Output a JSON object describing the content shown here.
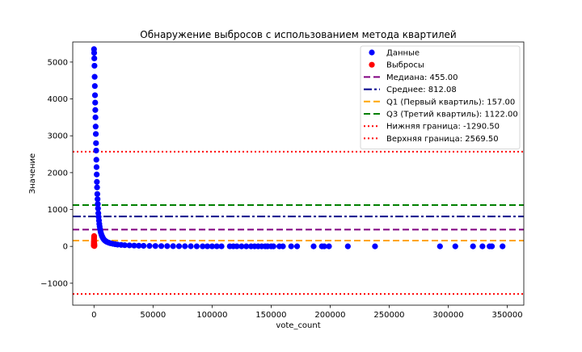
{
  "chart_data": {
    "type": "scatter",
    "title": "Обнаружение выбросов с использованием метода квартилей",
    "xlabel": "vote_count",
    "ylabel": "Значение",
    "xlim": [
      -18000,
      364000
    ],
    "ylim": [
      -1595,
      5545
    ],
    "xticks": [
      0,
      50000,
      100000,
      150000,
      200000,
      250000,
      300000,
      350000
    ],
    "yticks": [
      -1000,
      0,
      1000,
      2000,
      3000,
      4000,
      5000
    ],
    "grid": false,
    "legend_position": "top-right",
    "series": [
      {
        "name": "Данные",
        "marker": "circle",
        "color": "#0000ff",
        "x": [
          0,
          120,
          250,
          400,
          550,
          700,
          850,
          1000,
          1100,
          1250,
          1400,
          1550,
          1700,
          1850,
          2000,
          2150,
          2300,
          2450,
          2600,
          2800,
          3000,
          3200,
          3400,
          3650,
          3900,
          4200,
          4500,
          4800,
          5100,
          5500,
          5900,
          6400,
          6900,
          7500,
          8200,
          9000,
          10000,
          11000,
          12500,
          14000,
          16000,
          18000,
          20000,
          23000,
          26000,
          30000,
          34000,
          38000,
          42000,
          47000,
          52000,
          57000,
          62000,
          67000,
          72000,
          77000,
          82000,
          87000,
          92000,
          96000,
          100000,
          104000,
          108000,
          115000,
          118000,
          121000,
          125000,
          129000,
          133000,
          136000,
          139000,
          142000,
          145000,
          147000,
          150000,
          152000,
          157000,
          160000,
          167000,
          172000,
          186000,
          193000,
          195000,
          199000,
          215000,
          238000,
          293000,
          306000,
          321000,
          329000,
          335000,
          337000,
          346000
        ],
        "y": [
          5350,
          5250,
          5100,
          4900,
          4600,
          4350,
          4100,
          3900,
          3700,
          3500,
          3250,
          3050,
          2800,
          2600,
          2350,
          2150,
          1950,
          1750,
          1600,
          1420,
          1280,
          1150,
          1030,
          900,
          800,
          700,
          610,
          540,
          470,
          410,
          360,
          310,
          270,
          230,
          195,
          165,
          140,
          120,
          100,
          85,
          70,
          58,
          48,
          40,
          33,
          27,
          22,
          18,
          15,
          12,
          10,
          8,
          7,
          6,
          5,
          4,
          4,
          3,
          3,
          3,
          2,
          2,
          2,
          2,
          2,
          2,
          1,
          1,
          1,
          1,
          1,
          1,
          1,
          1,
          1,
          1,
          1,
          1,
          1,
          1,
          1,
          1,
          1,
          1,
          1,
          1,
          1,
          1,
          1,
          1,
          1,
          1,
          1
        ]
      },
      {
        "name": "Выбросы",
        "marker": "circle",
        "color": "#ff0000",
        "x": [
          -200,
          -150,
          -100,
          -60,
          -20,
          0,
          30,
          60,
          90,
          120,
          160,
          200,
          240,
          280,
          320
        ],
        "y": [
          20,
          50,
          80,
          110,
          130,
          160,
          190,
          220,
          250,
          280,
          120,
          90,
          60,
          40,
          10
        ]
      }
    ],
    "reference_lines": [
      {
        "name": "Медиана: 455.00",
        "y": 455.0,
        "color": "#800080",
        "style": "dashed"
      },
      {
        "name": "Среднее: 812.08",
        "y": 812.08,
        "color": "#00008b",
        "style": "dashdot"
      },
      {
        "name": "Q1 (Первый квартиль): 157.00",
        "y": 157.0,
        "color": "#ffa500",
        "style": "dashed"
      },
      {
        "name": "Q3 (Третий квартиль): 1122.00",
        "y": 1122.0,
        "color": "#008000",
        "style": "dashed"
      },
      {
        "name": "Нижняя граница: -1290.50",
        "y": -1290.5,
        "color": "#ff0000",
        "style": "dotted"
      },
      {
        "name": "Верхняя граница: 2569.50",
        "y": 2569.5,
        "color": "#ff0000",
        "style": "dotted"
      }
    ]
  }
}
